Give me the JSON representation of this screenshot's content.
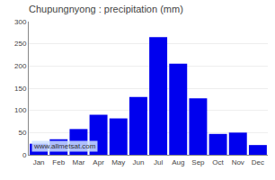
{
  "chart_data": {
    "type": "bar",
    "title": "Chupungnyong : precipitation (mm)",
    "categories": [
      "Jan",
      "Feb",
      "Mar",
      "Apr",
      "May",
      "Jun",
      "Jul",
      "Aug",
      "Sep",
      "Oct",
      "Nov",
      "Dec"
    ],
    "values": [
      25,
      35,
      58,
      90,
      82,
      130,
      265,
      205,
      127,
      47,
      50,
      22
    ],
    "color": "#0000ee",
    "ylim": [
      0,
      300
    ],
    "yticks": [
      0,
      50,
      100,
      150,
      200,
      250,
      300
    ],
    "grid": true,
    "annotations": [
      "www.allmetsat.com"
    ]
  }
}
